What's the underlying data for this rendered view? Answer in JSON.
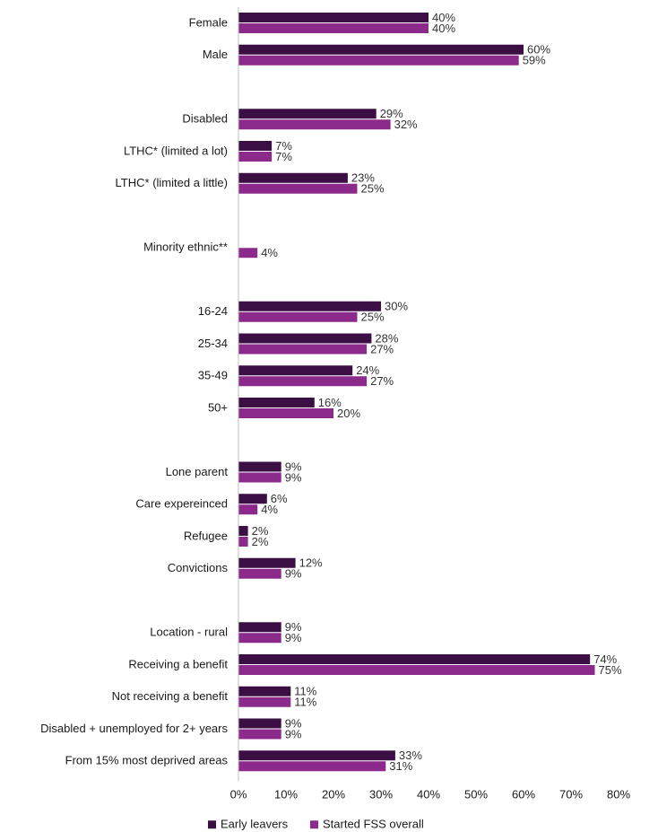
{
  "chart_data": {
    "type": "bar",
    "orientation": "horizontal",
    "title": "",
    "xlabel": "",
    "ylabel": "",
    "xlim": [
      0,
      80
    ],
    "x_ticks": [
      "0%",
      "10%",
      "20%",
      "30%",
      "40%",
      "50%",
      "60%",
      "70%",
      "80%"
    ],
    "grid": false,
    "legend_position": "bottom",
    "series_colors": [
      "#3b0f44",
      "#8c2a8c"
    ],
    "series": [
      {
        "name": "Early leavers",
        "color": "#3b0f44"
      },
      {
        "name": "Started FSS overall",
        "color": "#8c2a8c"
      }
    ],
    "groups": [
      {
        "categories": [
          {
            "label": "Female",
            "values": [
              40,
              40
            ],
            "data_labels": [
              "40%",
              "40%"
            ]
          },
          {
            "label": "Male",
            "values": [
              60,
              59
            ],
            "data_labels": [
              "60%",
              "59%"
            ]
          }
        ]
      },
      {
        "categories": [
          {
            "label": "Disabled",
            "values": [
              29,
              32
            ],
            "data_labels": [
              "29%",
              "32%"
            ]
          },
          {
            "label": "LTHC* (limited a lot)",
            "values": [
              7,
              7
            ],
            "data_labels": [
              "7%",
              "7%"
            ]
          },
          {
            "label": "LTHC* (limited a little)",
            "values": [
              23,
              25
            ],
            "data_labels": [
              "23%",
              "25%"
            ]
          }
        ]
      },
      {
        "categories": [
          {
            "label": "Minority ethnic**",
            "values": [
              null,
              4
            ],
            "data_labels": [
              null,
              "4%"
            ]
          }
        ]
      },
      {
        "categories": [
          {
            "label": "16-24",
            "values": [
              30,
              25
            ],
            "data_labels": [
              "30%",
              "25%"
            ]
          },
          {
            "label": "25-34",
            "values": [
              28,
              27
            ],
            "data_labels": [
              "28%",
              "27%"
            ]
          },
          {
            "label": "35-49",
            "values": [
              24,
              27
            ],
            "data_labels": [
              "24%",
              "27%"
            ]
          },
          {
            "label": "50+",
            "values": [
              16,
              20
            ],
            "data_labels": [
              "16%",
              "20%"
            ]
          }
        ]
      },
      {
        "categories": [
          {
            "label": "Lone parent",
            "values": [
              9,
              9
            ],
            "data_labels": [
              "9%",
              "9%"
            ]
          },
          {
            "label": "Care expereinced",
            "values": [
              6,
              4
            ],
            "data_labels": [
              "6%",
              "4%"
            ]
          },
          {
            "label": "Refugee",
            "values": [
              2,
              2
            ],
            "data_labels": [
              "2%",
              "2%"
            ]
          },
          {
            "label": "Convictions",
            "values": [
              12,
              9
            ],
            "data_labels": [
              "12%",
              "9%"
            ]
          }
        ]
      },
      {
        "categories": [
          {
            "label": "Location - rural",
            "values": [
              9,
              9
            ],
            "data_labels": [
              "9%",
              "9%"
            ]
          },
          {
            "label": "Receiving a benefit",
            "values": [
              74,
              75
            ],
            "data_labels": [
              "74%",
              "75%"
            ]
          },
          {
            "label": "Not receiving a benefit",
            "values": [
              11,
              11
            ],
            "data_labels": [
              "11%",
              "11%"
            ]
          },
          {
            "label": "Disabled + unemployed for 2+ years",
            "values": [
              9,
              9
            ],
            "data_labels": [
              "9%",
              "9%"
            ]
          },
          {
            "label": "From 15% most deprived areas",
            "values": [
              33,
              31
            ],
            "data_labels": [
              "33%",
              "31%"
            ]
          }
        ]
      }
    ]
  }
}
